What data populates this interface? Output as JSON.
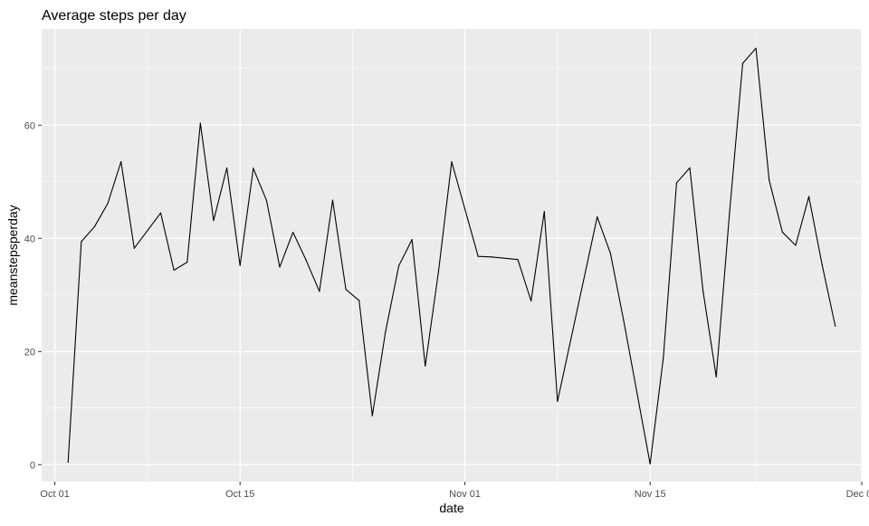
{
  "chart_data": {
    "type": "line",
    "title": "Average steps per day",
    "xlabel": "date",
    "ylabel": "meanstepsperday",
    "x_tick_labels": [
      "Oct 01",
      "Oct 15",
      "Nov 01",
      "Nov 15",
      "Dec 01"
    ],
    "x_tick_dates": [
      "2012-10-01",
      "2012-10-15",
      "2012-11-01",
      "2012-11-15",
      "2012-12-01"
    ],
    "y_ticks": [
      0,
      20,
      40,
      60
    ],
    "xlim": [
      "2012-09-30",
      "2012-12-01"
    ],
    "ylim": [
      -3,
      77
    ],
    "grid": true,
    "line_color": "#000000",
    "panel_color": "#ebebeb",
    "gridline_color": "#ffffff",
    "x": [
      "2012-10-02",
      "2012-10-03",
      "2012-10-04",
      "2012-10-05",
      "2012-10-06",
      "2012-10-07",
      "2012-10-09",
      "2012-10-10",
      "2012-10-11",
      "2012-10-12",
      "2012-10-13",
      "2012-10-14",
      "2012-10-15",
      "2012-10-16",
      "2012-10-17",
      "2012-10-18",
      "2012-10-19",
      "2012-10-20",
      "2012-10-21",
      "2012-10-22",
      "2012-10-23",
      "2012-10-24",
      "2012-10-25",
      "2012-10-26",
      "2012-10-27",
      "2012-10-28",
      "2012-10-29",
      "2012-10-30",
      "2012-10-31",
      "2012-11-02",
      "2012-11-03",
      "2012-11-05",
      "2012-11-06",
      "2012-11-07",
      "2012-11-08",
      "2012-11-11",
      "2012-11-12",
      "2012-11-13",
      "2012-11-15",
      "2012-11-16",
      "2012-11-17",
      "2012-11-18",
      "2012-11-19",
      "2012-11-20",
      "2012-11-21",
      "2012-11-22",
      "2012-11-23",
      "2012-11-24",
      "2012-11-25",
      "2012-11-26",
      "2012-11-27",
      "2012-11-28",
      "2012-11-29"
    ],
    "y": [
      0.4375,
      39.4167,
      42.0694,
      46.1597,
      53.5417,
      38.2465,
      44.4826,
      34.375,
      35.7778,
      60.3542,
      43.1458,
      52.4236,
      35.2049,
      52.375,
      46.7083,
      34.9167,
      41.0729,
      36.0938,
      30.6285,
      46.7361,
      30.9653,
      29.0104,
      8.6528,
      23.5347,
      35.1354,
      39.7847,
      17.4236,
      34.0938,
      53.5208,
      36.8056,
      36.7049,
      36.2465,
      28.9375,
      44.7326,
      11.1771,
      43.7778,
      37.3785,
      25.4722,
      0.1424,
      18.8924,
      49.7882,
      52.4653,
      30.6979,
      15.5278,
      44.3993,
      70.9271,
      73.5903,
      50.2708,
      41.0903,
      38.7569,
      47.3819,
      35.3576,
      24.4688
    ]
  }
}
